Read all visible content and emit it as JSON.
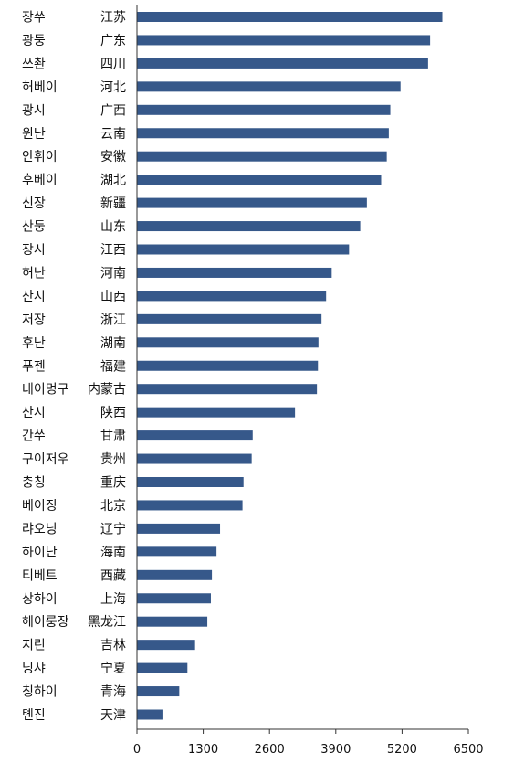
{
  "chart_data": {
    "type": "bar",
    "orientation": "horizontal",
    "title": "",
    "xlabel": "",
    "ylabel": "",
    "xlim": [
      0,
      6500
    ],
    "xticks": [
      0,
      1300,
      2600,
      3900,
      5200,
      6500
    ],
    "grid": false,
    "color": "#36588a",
    "categories": [
      {
        "ko": "장쑤",
        "zh": "江苏"
      },
      {
        "ko": "광둥",
        "zh": "广东"
      },
      {
        "ko": "쓰촨",
        "zh": "四川"
      },
      {
        "ko": "허베이",
        "zh": "河北"
      },
      {
        "ko": "광시",
        "zh": "广西"
      },
      {
        "ko": "윈난",
        "zh": "云南"
      },
      {
        "ko": "안휘이",
        "zh": "安徽"
      },
      {
        "ko": "후베이",
        "zh": "湖北"
      },
      {
        "ko": "신장",
        "zh": "新疆"
      },
      {
        "ko": "산둥",
        "zh": "山东"
      },
      {
        "ko": "장시",
        "zh": "江西"
      },
      {
        "ko": "허난",
        "zh": "河南"
      },
      {
        "ko": "산시",
        "zh": "山西"
      },
      {
        "ko": "저장",
        "zh": "浙江"
      },
      {
        "ko": "후난",
        "zh": "湖南"
      },
      {
        "ko": "푸젠",
        "zh": "福建"
      },
      {
        "ko": "네이멍구",
        "zh": "内蒙古"
      },
      {
        "ko": "산시",
        "zh": "陕西"
      },
      {
        "ko": "간쑤",
        "zh": "甘肃"
      },
      {
        "ko": "구이저우",
        "zh": "贵州"
      },
      {
        "ko": "충칭",
        "zh": "重庆"
      },
      {
        "ko": "베이징",
        "zh": "北京"
      },
      {
        "ko": "랴오닝",
        "zh": "辽宁"
      },
      {
        "ko": "하이난",
        "zh": "海南"
      },
      {
        "ko": "티베트",
        "zh": "西藏"
      },
      {
        "ko": "상하이",
        "zh": "上海"
      },
      {
        "ko": "헤이룽장",
        "zh": "黑龙江"
      },
      {
        "ko": "지린",
        "zh": "吉林"
      },
      {
        "ko": "닝샤",
        "zh": "宁夏"
      },
      {
        "ko": "칭하이",
        "zh": "青海"
      },
      {
        "ko": "톈진",
        "zh": "天津"
      }
    ],
    "values": [
      5990,
      5750,
      5710,
      5170,
      4970,
      4940,
      4900,
      4790,
      4510,
      4380,
      4160,
      3820,
      3710,
      3620,
      3560,
      3550,
      3530,
      3100,
      2270,
      2250,
      2090,
      2070,
      1630,
      1560,
      1470,
      1450,
      1380,
      1140,
      990,
      830,
      500
    ]
  }
}
